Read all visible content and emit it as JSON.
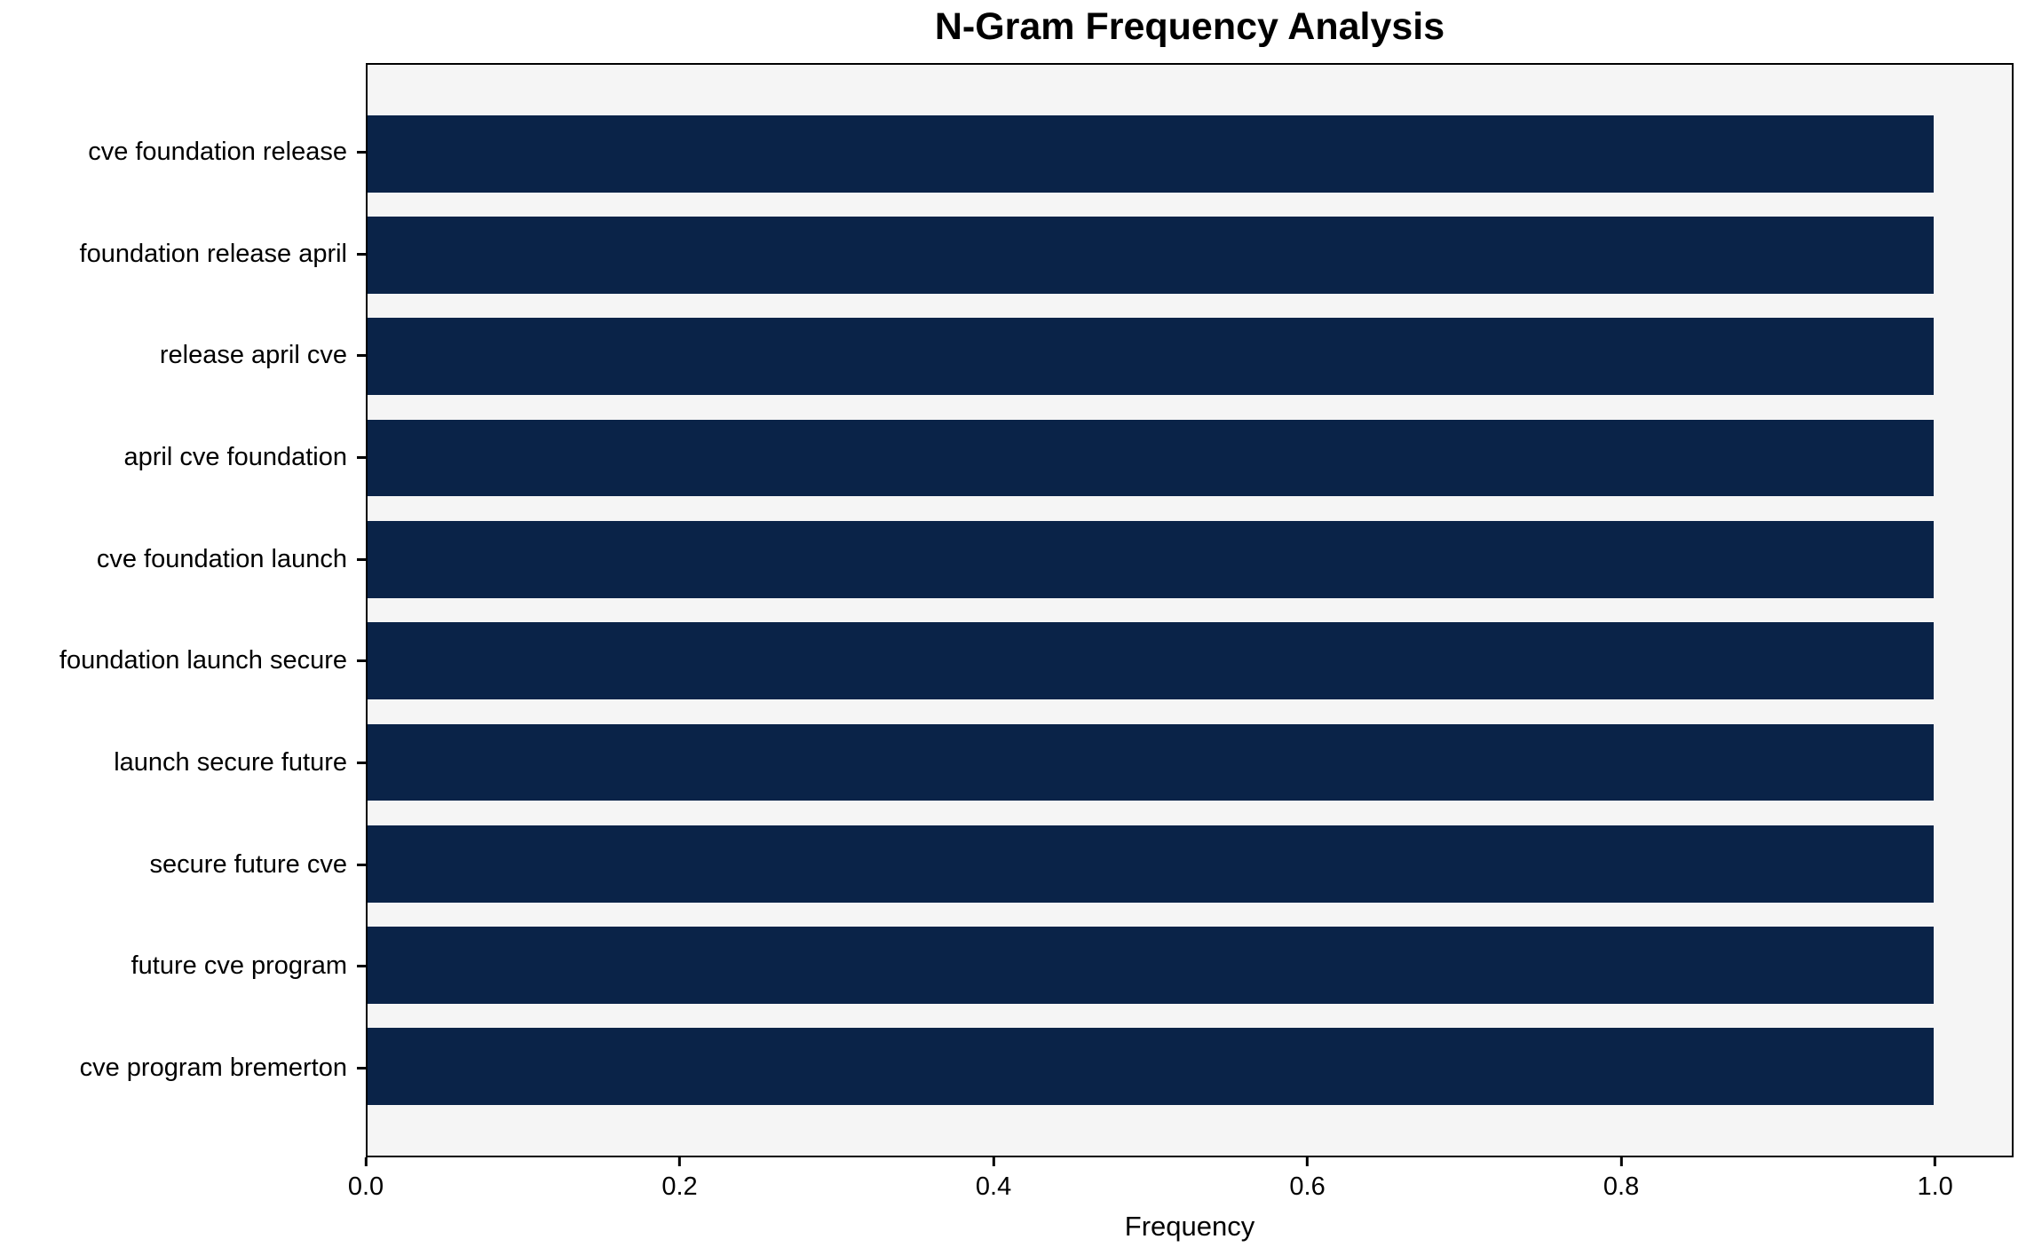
{
  "chart_data": {
    "type": "bar",
    "orientation": "horizontal",
    "title": "N-Gram Frequency Analysis",
    "xlabel": "Frequency",
    "ylabel": "",
    "categories": [
      "cve foundation release",
      "foundation release april",
      "release april cve",
      "april cve foundation",
      "cve foundation launch",
      "foundation launch secure",
      "launch secure future",
      "secure future cve",
      "future cve program",
      "cve program bremerton"
    ],
    "values": [
      1.0,
      1.0,
      1.0,
      1.0,
      1.0,
      1.0,
      1.0,
      1.0,
      1.0,
      1.0
    ],
    "xlim": [
      0,
      1.05
    ],
    "x_ticks": [
      0.0,
      0.2,
      0.4,
      0.6,
      0.8,
      1.0
    ],
    "x_tick_labels": [
      "0.0",
      "0.2",
      "0.4",
      "0.6",
      "0.8",
      "1.0"
    ],
    "grid": false,
    "legend_visible": false,
    "colors": {
      "bar": "#0a2348",
      "plot_background": "#f5f5f5",
      "figure_background": "#ffffff",
      "spine": "#000000",
      "text": "#000000"
    }
  }
}
